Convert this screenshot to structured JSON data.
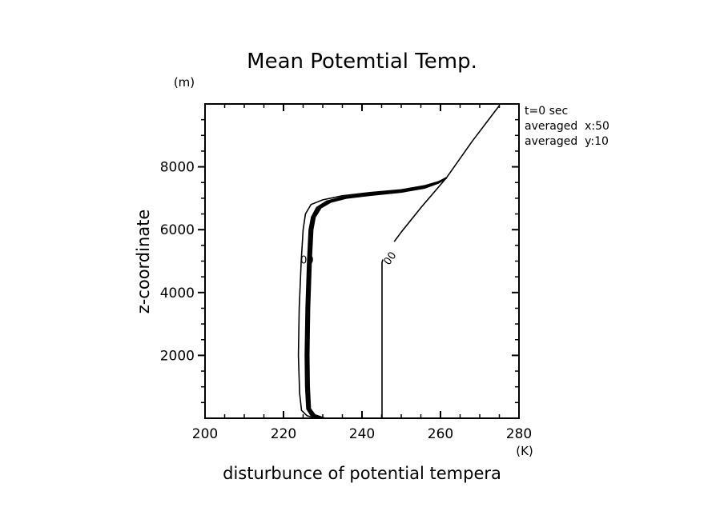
{
  "chart_data": {
    "type": "line",
    "title": "Mean Potemtial Temp.",
    "xlabel": "disturbunce of potential tempera",
    "xunit": "(K)",
    "ylabel": "z-coordinate",
    "yunit": "(m)",
    "xlim": [
      200,
      280
    ],
    "ylim": [
      0,
      10000
    ],
    "x_major_ticks": [
      200,
      220,
      240,
      260,
      280
    ],
    "x_minor_step": 5,
    "y_major_ticks": [
      2000,
      4000,
      6000,
      8000
    ],
    "y_minor_step": 500,
    "grid": false,
    "annotations": [
      "t=0 sec",
      "averaged  x:50",
      "averaged  y:10"
    ],
    "contour_labels": [
      {
        "text": "00",
        "x": 247,
        "y": 5100
      },
      {
        "text": "00",
        "x": 226,
        "y": 5050
      }
    ],
    "series": [
      {
        "name": "profile-thin-left",
        "points": [
          [
            228.5,
            0
          ],
          [
            226,
            80
          ],
          [
            224.6,
            250
          ],
          [
            224.1,
            800
          ],
          [
            223.8,
            2000
          ],
          [
            224.0,
            3500
          ],
          [
            224.5,
            5000
          ],
          [
            225.0,
            6000
          ],
          [
            225.6,
            6500
          ],
          [
            227,
            6800
          ],
          [
            230,
            6950
          ],
          [
            235,
            7080
          ],
          [
            242,
            7180
          ],
          [
            250,
            7270
          ],
          [
            256,
            7400
          ],
          [
            259.5,
            7530
          ],
          [
            261.5,
            7650
          ]
        ]
      },
      {
        "name": "profile-bundle-1",
        "points": [
          [
            229.5,
            0
          ],
          [
            227,
            100
          ],
          [
            226.0,
            300
          ],
          [
            225.7,
            1000
          ],
          [
            225.6,
            2000
          ],
          [
            225.8,
            3500
          ],
          [
            226.2,
            5000
          ],
          [
            226.6,
            6000
          ],
          [
            227.2,
            6400
          ],
          [
            228.5,
            6700
          ],
          [
            231,
            6900
          ],
          [
            235,
            7030
          ],
          [
            242,
            7140
          ],
          [
            250,
            7240
          ],
          [
            256,
            7370
          ],
          [
            259.5,
            7510
          ],
          [
            261.5,
            7650
          ]
        ]
      },
      {
        "name": "profile-bundle-2",
        "points": [
          [
            230,
            0
          ],
          [
            227.5,
            100
          ],
          [
            226.4,
            300
          ],
          [
            226.1,
            1000
          ],
          [
            226.0,
            2000
          ],
          [
            226.2,
            3500
          ],
          [
            226.6,
            5000
          ],
          [
            227.0,
            6000
          ],
          [
            227.6,
            6400
          ],
          [
            229,
            6700
          ],
          [
            231.5,
            6890
          ],
          [
            235.5,
            7020
          ],
          [
            242,
            7120
          ],
          [
            250,
            7220
          ],
          [
            256,
            7350
          ],
          [
            259.5,
            7500
          ],
          [
            261.5,
            7650
          ]
        ]
      },
      {
        "name": "profile-bundle-3",
        "points": [
          [
            230.5,
            0
          ],
          [
            228,
            100
          ],
          [
            226.8,
            300
          ],
          [
            226.5,
            1000
          ],
          [
            226.4,
            2000
          ],
          [
            226.6,
            3500
          ],
          [
            227.0,
            5000
          ],
          [
            227.4,
            6000
          ],
          [
            228,
            6400
          ],
          [
            229.5,
            6700
          ],
          [
            232,
            6880
          ],
          [
            236,
            7010
          ],
          [
            242,
            7100
          ],
          [
            250,
            7200
          ],
          [
            256,
            7330
          ],
          [
            259.5,
            7490
          ],
          [
            261.5,
            7650
          ]
        ]
      },
      {
        "name": "profile-stable-column",
        "points": [
          [
            245.1,
            0
          ],
          [
            245.1,
            4950
          ],
          [
            245.3,
            5050
          ]
        ]
      },
      {
        "name": "profile-stable-upper",
        "points": [
          [
            248.2,
            5620
          ],
          [
            250,
            5920
          ],
          [
            255,
            6700
          ],
          [
            261.5,
            7650
          ]
        ]
      },
      {
        "name": "profile-top",
        "points": [
          [
            261.5,
            7650
          ],
          [
            268,
            8800
          ],
          [
            275,
            9950
          ]
        ]
      }
    ]
  }
}
